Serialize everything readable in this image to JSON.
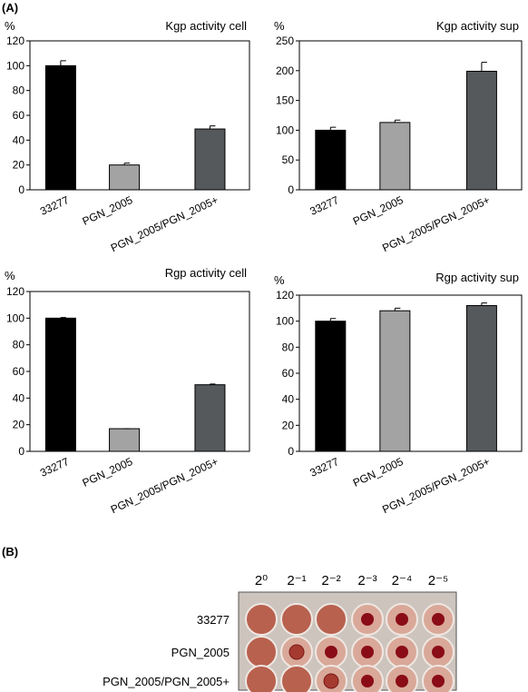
{
  "panel_labels": {
    "a": "(A)",
    "b": "(B)"
  },
  "chart_data": [
    {
      "type": "bar",
      "title": "Kgp activity cell",
      "y_label": "%",
      "categories": [
        "33277",
        "PGN_2005",
        "PGN_2005/PGN_2005+"
      ],
      "values": [
        100,
        20,
        49
      ],
      "errors": [
        4,
        1.5,
        2.5
      ],
      "colors": [
        "#000000",
        "#a3a3a3",
        "#55595c"
      ],
      "ylim": [
        0,
        120
      ],
      "yticks": [
        0,
        20,
        40,
        60,
        80,
        100,
        120
      ]
    },
    {
      "type": "bar",
      "title": "Kgp activity sup",
      "y_label": "%",
      "categories": [
        "33277",
        "PGN_2005",
        "PGN_2005/PGN_2005+"
      ],
      "values": [
        100,
        113,
        199
      ],
      "errors": [
        5,
        4,
        15
      ],
      "colors": [
        "#000000",
        "#a3a3a3",
        "#55595c"
      ],
      "ylim": [
        0,
        250
      ],
      "yticks": [
        0,
        50,
        100,
        150,
        200,
        250
      ]
    },
    {
      "type": "bar",
      "title": "Rgp activity cell",
      "y_label": "%",
      "categories": [
        "33277",
        "PGN_2005",
        "PGN_2005/PGN_2005+"
      ],
      "values": [
        100,
        17,
        50
      ],
      "errors": [
        0.5,
        0,
        0.5
      ],
      "colors": [
        "#000000",
        "#a3a3a3",
        "#55595c"
      ],
      "ylim": [
        0,
        120
      ],
      "yticks": [
        0,
        20,
        40,
        60,
        80,
        100,
        120
      ]
    },
    {
      "type": "bar",
      "title": "Rgp activity sup",
      "y_label": "%",
      "categories": [
        "33277",
        "PGN_2005",
        "PGN_2005/PGN_2005+"
      ],
      "values": [
        100,
        108,
        112
      ],
      "errors": [
        2,
        2,
        2
      ],
      "colors": [
        "#000000",
        "#a3a3a3",
        "#55595c"
      ],
      "ylim": [
        0,
        120
      ],
      "yticks": [
        0,
        20,
        40,
        60,
        80,
        100,
        120
      ]
    }
  ],
  "plate": {
    "columns": [
      "2⁰",
      "2⁻¹",
      "2⁻²",
      "2⁻³",
      "2⁻⁴",
      "2⁻⁵"
    ],
    "rows": [
      "33277",
      "PGN_2005",
      "PGN_2005/PGN_2005+"
    ]
  }
}
